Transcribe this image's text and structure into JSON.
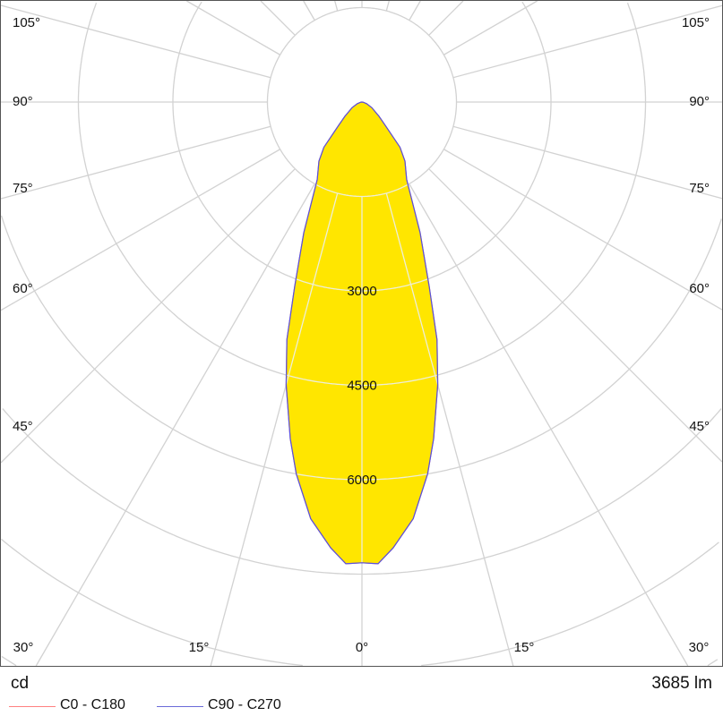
{
  "chart_data": {
    "type": "polar",
    "unit": "cd",
    "flux": "3685 lm",
    "angle_labels": [
      "105°",
      "90°",
      "75°",
      "60°",
      "45°",
      "30°",
      "15°",
      "0°",
      "15°",
      "30°"
    ],
    "ring_labels": [
      "3000",
      "4500",
      "6000"
    ],
    "ring_step_cd": 1500,
    "grid": true,
    "angle_step_deg": 15,
    "legend_position": "bottom-left",
    "gamma_deg": [
      0,
      2,
      4,
      7,
      10,
      12,
      15,
      17.5,
      20,
      24,
      30,
      36,
      40,
      45,
      50,
      60,
      70,
      80,
      90
    ],
    "series": [
      {
        "name": "C0 - C180",
        "color": "#ff6666",
        "values": [
          7320,
          7340,
          7100,
          6670,
          6000,
          5470,
          4650,
          3960,
          3120,
          2270,
          1420,
          1160,
          940,
          520,
          350,
          180,
          80,
          20,
          0
        ]
      },
      {
        "name": "C90 - C270",
        "color": "#5555dd",
        "values": [
          7320,
          7340,
          7100,
          6670,
          6000,
          5470,
          4650,
          3960,
          3120,
          2270,
          1420,
          1160,
          940,
          520,
          350,
          180,
          80,
          20,
          0
        ]
      }
    ],
    "fill_color": "#ffe600"
  }
}
